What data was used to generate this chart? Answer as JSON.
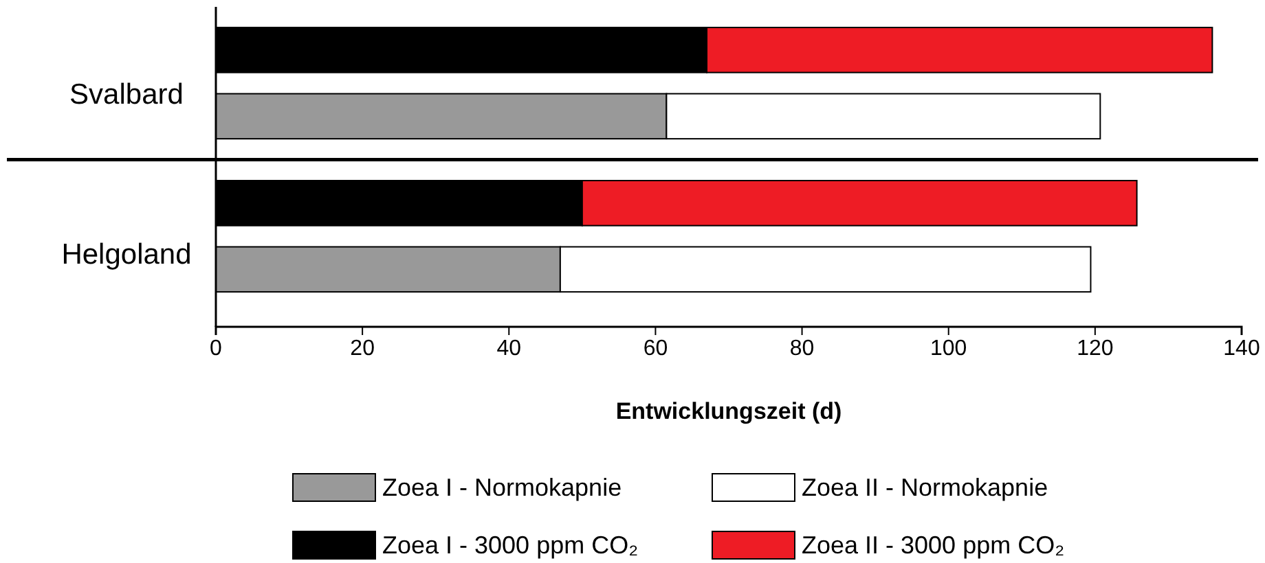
{
  "chart_data": {
    "type": "bar",
    "orientation": "horizontal",
    "stacked": true,
    "xlabel": "Entwicklungszeit (d)",
    "categories": [
      null,
      null,
      null,
      null
    ],
    "annotations": [
      "Svalbard",
      "Helgoland"
    ],
    "series": [
      {
        "name": "Zoea I - Normokapnie",
        "color": "#999999",
        "values": [
          null,
          61.5,
          null,
          47
        ]
      },
      {
        "name": "Zoea II - Normokapnie",
        "color": "#ffffff",
        "values": [
          null,
          59.2,
          null,
          72.4
        ]
      },
      {
        "name": "Zoea I - 3000 ppm CO₂",
        "color": "#000000",
        "values": [
          67,
          null,
          50,
          null
        ]
      },
      {
        "name": "Zoea II - 3000 ppm CO₂",
        "color": "#ee1c25",
        "values": [
          69,
          null,
          75.7,
          null
        ]
      }
    ],
    "xlim": [
      0,
      140
    ],
    "xticks": [
      0,
      20,
      40,
      60,
      80,
      100,
      120,
      140
    ],
    "grid": false,
    "legend": "bottom"
  }
}
